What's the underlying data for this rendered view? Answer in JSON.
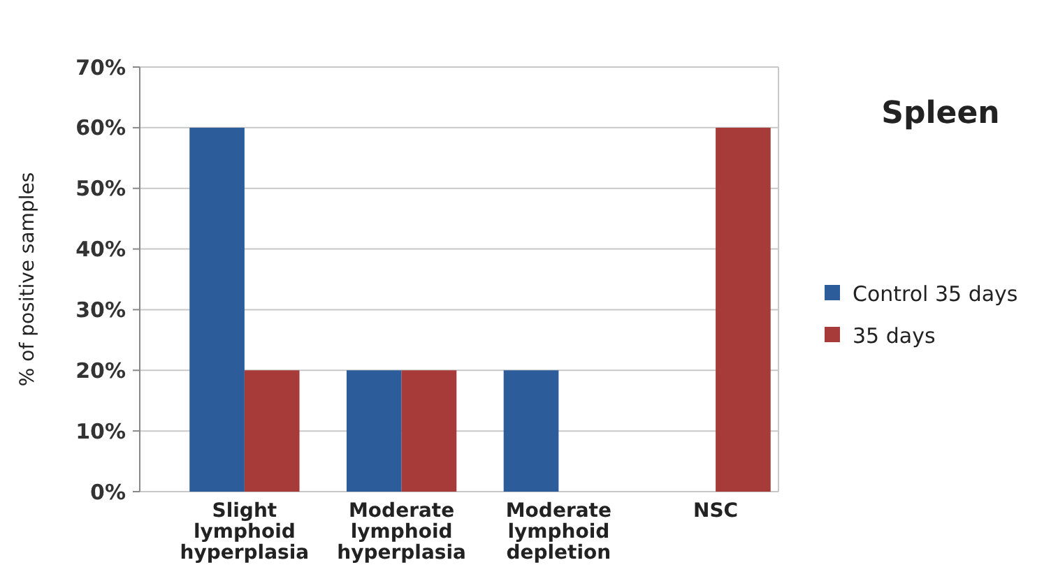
{
  "chart_data": {
    "type": "bar",
    "title": "Spleen",
    "ylabel": "% of positive samples",
    "categories": [
      "Slight lymphoid hyperplasia",
      "Moderate lymphoid hyperplasia",
      "Moderate lymphoid depletion",
      "NSC"
    ],
    "series": [
      {
        "name": "Control 35 days",
        "color": "#2c5c9a",
        "values": [
          60,
          20,
          20,
          0
        ]
      },
      {
        "name": "35 days",
        "color": "#a63b39",
        "values": [
          20,
          20,
          0,
          60
        ]
      }
    ],
    "ylim": [
      0,
      70
    ],
    "yticks": [
      {
        "value": 0,
        "label": "0%"
      },
      {
        "value": 10,
        "label": "10%"
      },
      {
        "value": 20,
        "label": "20%"
      },
      {
        "value": 30,
        "label": "30%"
      },
      {
        "value": 40,
        "label": "40%"
      },
      {
        "value": 50,
        "label": "50%"
      },
      {
        "value": 60,
        "label": "60%"
      },
      {
        "value": 70,
        "label": "70%"
      }
    ],
    "grid": "y",
    "legend": "right"
  }
}
